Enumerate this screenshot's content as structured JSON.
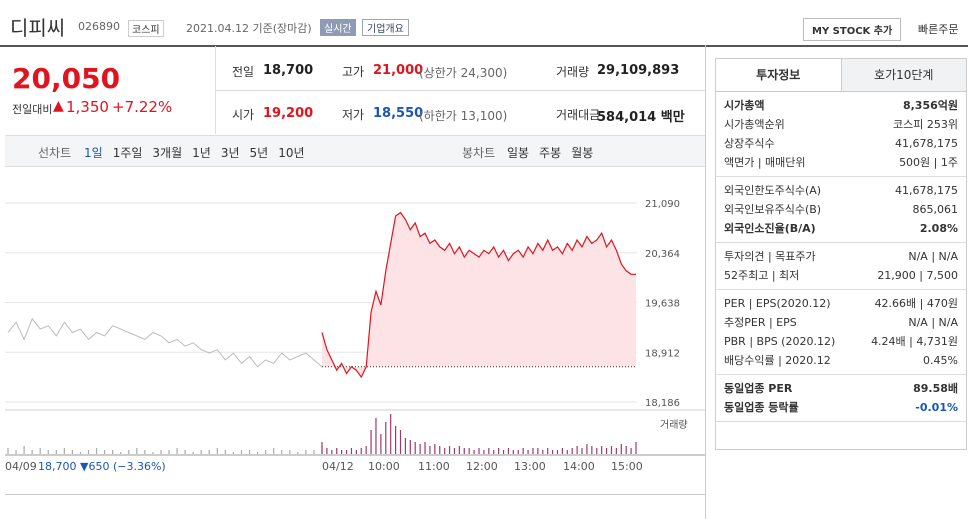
{
  "header": {
    "name": "디피씨",
    "code": "026890",
    "market": "코스피",
    "date": "2021.04.12 기준(장마감)",
    "realtime": "실시간",
    "company_info": "기업개요",
    "mystock": "MY STOCK 추가",
    "quick_order": "빠른주문"
  },
  "price": {
    "current": "20,050",
    "change_label": "전일대비",
    "change": "1,350",
    "change_pct": "+7.22%"
  },
  "summary": [
    {
      "label": "전일",
      "value": "18,700"
    },
    {
      "label": "고가",
      "value": "21,000",
      "note": "(상한가 24,300)"
    },
    {
      "label": "거래량",
      "value": "29,109,893"
    },
    {
      "label": "시가",
      "value": "19,200"
    },
    {
      "label": "저가",
      "value": "18,550",
      "note": "(하한가 13,100)"
    },
    {
      "label": "거래대금",
      "value": "584,014 백만"
    }
  ],
  "line_tabs": {
    "label": "선차트",
    "items": [
      "1일",
      "1주일",
      "3개월",
      "1년",
      "3년",
      "5년",
      "10년"
    ]
  },
  "candle_tabs": {
    "label": "봉차트",
    "items": [
      "일봉",
      "주봉",
      "월봉"
    ]
  },
  "chart": {
    "ylim": [
      18186,
      21090
    ],
    "yticks": [
      {
        "value": 21090,
        "label": "21,090"
      },
      {
        "value": 20364,
        "label": "20,364"
      },
      {
        "value": 19638,
        "label": "19,638"
      },
      {
        "value": 18912,
        "label": "18,912"
      },
      {
        "value": 18186,
        "label": "18,186"
      }
    ],
    "prev_close": 18700,
    "previous_day": [
      19200,
      19350,
      19100,
      19400,
      19250,
      19300,
      19150,
      19350,
      19200,
      19250,
      19100,
      19200,
      19150,
      19300,
      19250,
      19200,
      19150,
      19100,
      19200,
      19150,
      19050,
      19100,
      19000,
      19050,
      18950,
      18900,
      18950,
      18800,
      18900,
      18750,
      18850,
      18700,
      18800,
      18750,
      18900,
      18800,
      18850,
      18900,
      18800,
      18700
    ],
    "today": [
      19200,
      18950,
      18800,
      18650,
      18750,
      18600,
      18700,
      18650,
      18550,
      18700,
      19500,
      19800,
      19600,
      20100,
      20500,
      20900,
      20950,
      20850,
      20700,
      20800,
      20600,
      20650,
      20500,
      20550,
      20450,
      20400,
      20500,
      20350,
      20450,
      20300,
      20400,
      20350,
      20300,
      20400,
      20350,
      20450,
      20300,
      20400,
      20250,
      20350,
      20400,
      20300,
      20450,
      20350,
      20500,
      20400,
      20550,
      20400,
      20450,
      20350,
      20500,
      20400,
      20550,
      20450,
      20600,
      20500,
      20550,
      20650,
      20450,
      20550,
      20400,
      20200,
      20100,
      20050,
      20050
    ],
    "volume_previous": [
      3,
      2,
      4,
      2,
      3,
      2,
      2,
      3,
      2,
      1,
      2,
      3,
      2,
      2,
      1,
      2,
      3,
      2,
      1,
      2,
      2,
      3,
      2,
      1,
      2,
      2,
      3,
      2,
      1,
      2,
      2,
      1,
      2,
      3,
      2,
      2,
      1,
      2,
      2,
      4
    ],
    "volume_today": [
      6,
      3,
      2,
      3,
      2,
      2,
      3,
      2,
      3,
      4,
      12,
      18,
      10,
      16,
      20,
      14,
      12,
      8,
      7,
      6,
      5,
      6,
      4,
      5,
      4,
      3,
      4,
      3,
      4,
      3,
      3,
      2,
      3,
      2,
      3,
      2,
      3,
      2,
      3,
      2,
      2,
      3,
      2,
      3,
      3,
      2,
      3,
      2,
      2,
      3,
      2,
      3,
      4,
      3,
      5,
      4,
      3,
      4,
      3,
      4,
      3,
      5,
      4,
      3,
      6
    ],
    "volume_label": "거래량",
    "time_labels": [
      "04/09",
      "04/12",
      "10:00",
      "11:00",
      "12:00",
      "13:00",
      "14:00",
      "15:00"
    ],
    "prev_summary": "18,700 ▼650 (−3.36%)"
  },
  "side": {
    "tabs": [
      "투자정보",
      "호가10단계"
    ],
    "groups": [
      [
        {
          "label": "시가총액",
          "value": "8,356억원"
        },
        {
          "label": "시가총액순위",
          "value": "코스피 253위"
        },
        {
          "label": "상장주식수",
          "value": "41,678,175"
        },
        {
          "label": "액면가 | 매매단위",
          "value": "500원 | 1주"
        }
      ],
      [
        {
          "label": "외국인한도주식수(A)",
          "value": "41,678,175"
        },
        {
          "label": "외국인보유주식수(B)",
          "value": "865,061"
        },
        {
          "label": "외국인소진율(B/A)",
          "value": "2.08%"
        }
      ],
      [
        {
          "label": "투자의견 | 목표주가",
          "value": "N/A | N/A"
        },
        {
          "label": "52주최고 | 최저",
          "value": "21,900 | 7,500"
        }
      ],
      [
        {
          "label": "PER | EPS(2020.12)",
          "value": "42.66배 | 470원"
        },
        {
          "label": "추정PER | EPS",
          "value": "N/A | N/A"
        },
        {
          "label": "PBR | BPS (2020.12)",
          "value": "4.24배 | 4,731원"
        },
        {
          "label": "배당수익률 | 2020.12",
          "value": "0.45%"
        }
      ],
      [
        {
          "label": "동일업종 PER",
          "value": "89.58배"
        },
        {
          "label": "동일업종 등락률",
          "value": "-0.01%"
        }
      ]
    ]
  }
}
